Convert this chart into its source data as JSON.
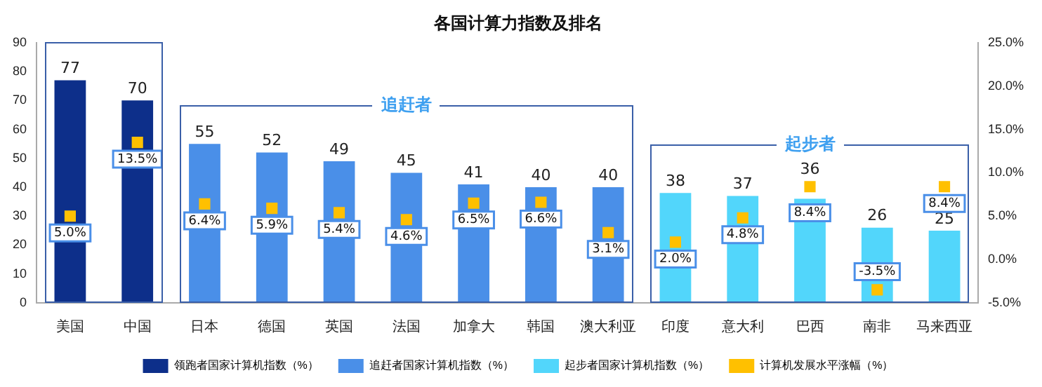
{
  "chart_data": {
    "type": "bar",
    "title": "各国计算力指数及排名",
    "categories": [
      "美国",
      "中国",
      "日本",
      "德国",
      "英国",
      "法国",
      "加拿大",
      "韩国",
      "澳大利亚",
      "印度",
      "意大利",
      "巴西",
      "南非",
      "马来西亚"
    ],
    "series": [
      {
        "name": "领跑者国家计算机指数（%）",
        "color": "#0d2f8a",
        "values": [
          77,
          70,
          null,
          null,
          null,
          null,
          null,
          null,
          null,
          null,
          null,
          null,
          null,
          null
        ],
        "value_labels": [
          "77",
          "70",
          null,
          null,
          null,
          null,
          null,
          null,
          null,
          null,
          null,
          null,
          null,
          null
        ]
      },
      {
        "name": "追赶者国家计算机指数（%）",
        "color": "#4a8fe8",
        "values": [
          null,
          null,
          55,
          52,
          49,
          45,
          41,
          40,
          40,
          null,
          null,
          null,
          null,
          null
        ],
        "value_labels": [
          null,
          null,
          "55",
          "52",
          "49",
          "45",
          "41",
          "40",
          "40",
          null,
          null,
          null,
          null,
          null
        ]
      },
      {
        "name": "起步者国家计算机指数（%）",
        "color": "#52d6fb",
        "values": [
          null,
          null,
          null,
          null,
          null,
          null,
          null,
          null,
          null,
          38,
          37,
          36,
          26,
          25
        ],
        "value_labels": [
          null,
          null,
          null,
          null,
          null,
          null,
          null,
          null,
          null,
          "38",
          "37",
          "36",
          "26",
          "25"
        ]
      },
      {
        "name": "计算机发展水平涨幅（%）",
        "type": "scatter",
        "axis": "y2",
        "color": "#ffc000",
        "x": [
          "美国",
          "中国",
          "日本",
          "德国",
          "英国",
          "法国",
          "加拿大",
          "韩国",
          "澳大利亚",
          "印度",
          "意大利",
          "巴西",
          "南非",
          "马来西亚"
        ],
        "values": [
          5.0,
          13.5,
          6.4,
          5.9,
          5.4,
          4.6,
          6.5,
          6.6,
          3.1,
          2.0,
          4.8,
          8.4,
          -3.5,
          8.4
        ],
        "value_labels": [
          "5.0%",
          "13.5%",
          "6.4%",
          "5.9%",
          "5.4%",
          "4.6%",
          "6.5%",
          "6.6%",
          "3.1%",
          "2.0%",
          "4.8%",
          "8.4%",
          "-3.5%",
          "8.4%"
        ]
      }
    ],
    "ylim": [
      0,
      90
    ],
    "yticks": [
      0,
      10,
      20,
      30,
      40,
      50,
      60,
      70,
      80,
      90
    ],
    "y2lim": [
      -5,
      25
    ],
    "y2ticks": [
      {
        "value": -5,
        "label": "-5.0%"
      },
      {
        "value": 0,
        "label": "0.0%"
      },
      {
        "value": 5,
        "label": "5.0%"
      },
      {
        "value": 10,
        "label": "10.0%"
      },
      {
        "value": 15,
        "label": "15.0%"
      },
      {
        "value": 20,
        "label": "20.0%"
      },
      {
        "value": 25,
        "label": "25.0%"
      }
    ],
    "annotations": [
      "追赶者",
      "起步者"
    ],
    "marker": "square",
    "legend": "bottom",
    "grid": false
  }
}
